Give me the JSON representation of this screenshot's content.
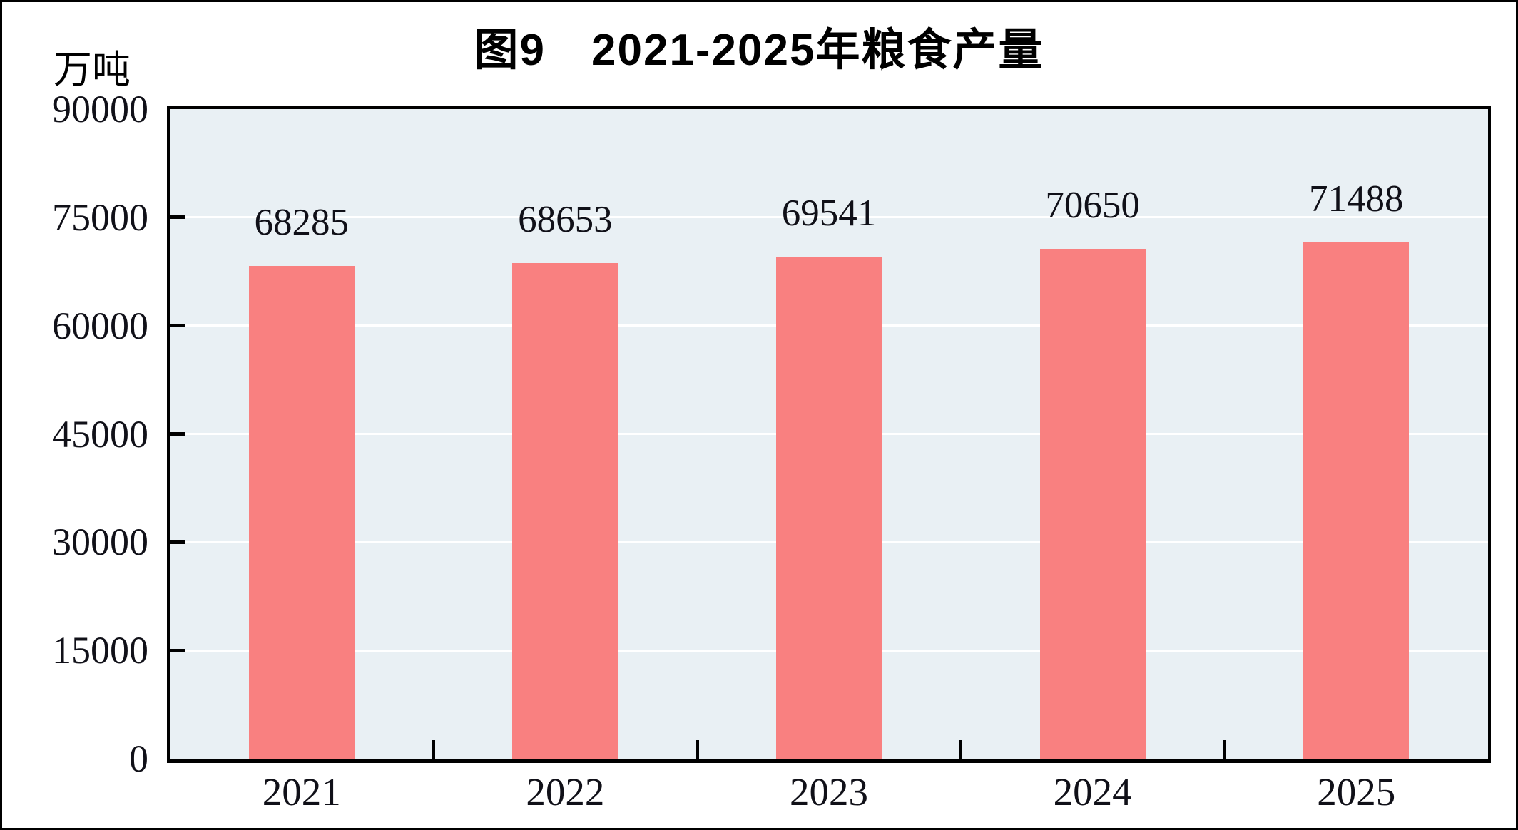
{
  "chart": {
    "title": "图9　2021-2025年粮食产量",
    "unit_label": "万吨"
  },
  "chart_data": {
    "type": "bar",
    "title": "图9　2021-2025年粮食产量",
    "series_name": "粮食产量",
    "categories": [
      "2021",
      "2022",
      "2023",
      "2024",
      "2025"
    ],
    "values": [
      68285,
      68653,
      69541,
      70650,
      71488
    ],
    "data_labels": [
      "68285",
      "68653",
      "69541",
      "70650",
      "71488"
    ],
    "xlabel": "",
    "ylabel": "万吨",
    "ylim": [
      0,
      90000
    ],
    "yticks": [
      0,
      15000,
      30000,
      45000,
      60000,
      75000,
      90000
    ],
    "gridline_values": [
      15000,
      30000,
      45000,
      60000,
      75000
    ],
    "grid": true,
    "legend": false,
    "colors": {
      "bar": "#F98080",
      "plot_background": "#E9F0F4",
      "gridline": "#FFFFFF",
      "axis": "#000000",
      "text": "#101018"
    }
  }
}
